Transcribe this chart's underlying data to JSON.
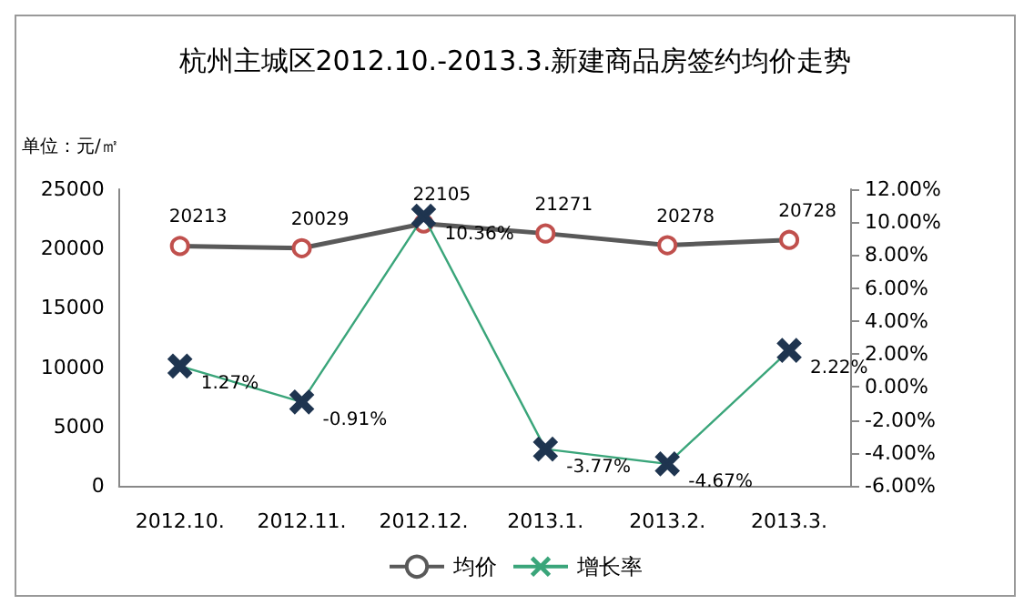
{
  "chart_data": {
    "type": "line",
    "title": "杭州主城区2012.10.-2013.3.新建商品房签约均价走势",
    "ylabel": "单位：元/㎡",
    "categories": [
      "2012.10.",
      "2012.11.",
      "2012.12.",
      "2013.1.",
      "2013.2.",
      "2013.3."
    ],
    "series": [
      {
        "name": "均价",
        "color": "#595959",
        "colors": [
          "#c0504d",
          "#c0504d",
          "#c0504d",
          "#c0504d",
          "#c0504d",
          "#c0504d"
        ],
        "marker": "circle",
        "values": [
          20213,
          20029,
          22105,
          21271,
          20278,
          20728
        ],
        "value_labels": [
          "20213",
          "20029",
          "22105",
          "21271",
          "20278",
          "20728"
        ]
      },
      {
        "name": "增长率",
        "color": "#3aa57a",
        "colors": [
          "#1f3550",
          "#1f3550",
          "#1f3550",
          "#1f3550",
          "#1f3550",
          "#1f3550"
        ],
        "marker": "cross",
        "axis": "y2",
        "values": [
          1.27,
          -0.91,
          10.36,
          -3.77,
          -4.67,
          2.22
        ],
        "value_labels": [
          "1.27%",
          "-0.91%",
          "10.36%",
          "-3.77%",
          "-4.67%",
          "2.22%"
        ]
      }
    ],
    "ylim": [
      0,
      25000
    ],
    "yticks": [
      0,
      5000,
      10000,
      15000,
      20000,
      25000
    ],
    "y2lim": [
      -6,
      12
    ],
    "y2ticks": [
      {
        "value": -6,
        "label": "-6.00%"
      },
      {
        "value": -4,
        "label": "-4.00%"
      },
      {
        "value": -2,
        "label": "-2.00%"
      },
      {
        "value": 0,
        "label": "0.00%"
      },
      {
        "value": 2,
        "label": "2.00%"
      },
      {
        "value": 4,
        "label": "4.00%"
      },
      {
        "value": 6,
        "label": "6.00%"
      },
      {
        "value": 8,
        "label": "8.00%"
      },
      {
        "value": 10,
        "label": "10.00%"
      },
      {
        "value": 12,
        "label": "12.00%"
      }
    ],
    "legend": "bottom",
    "grid": false
  }
}
